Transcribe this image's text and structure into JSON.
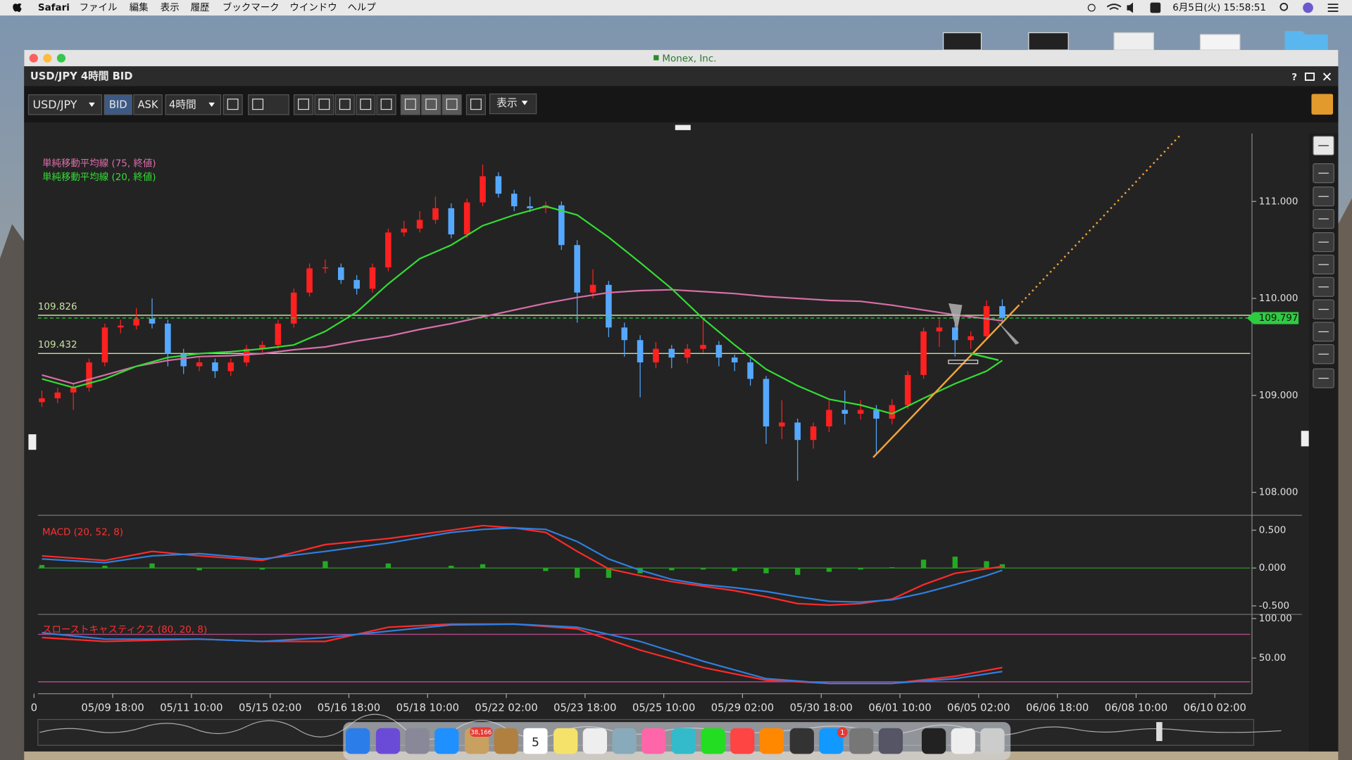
{
  "menubar": {
    "app": "Safari",
    "items": [
      "ファイル",
      "編集",
      "表示",
      "履歴",
      "ブックマーク",
      "ウインドウ",
      "ヘルプ"
    ],
    "clock": "6月5日(火) 15:58:51"
  },
  "window": {
    "title": "Monex, Inc."
  },
  "panel": {
    "title": "USD/JPY 4時間 BID",
    "help": "?"
  },
  "toolbar": {
    "symbol": "USD/JPY",
    "bid": "BID",
    "ask": "ASK",
    "interval": "4時間",
    "display": "表示"
  },
  "dock": {
    "mail_badge": "38,166",
    "calendar_day": "5",
    "appstore_badge": "1"
  },
  "chart_data": [
    {
      "type": "candlestick",
      "up_color": "#ff2020",
      "down_color": "#55a8ff",
      "grid": false,
      "xlim": [
        -0.5,
        153.5
      ],
      "ylim": [
        107.79,
        111.7
      ],
      "yticks": [
        {
          "value": 108,
          "label": "108.000"
        },
        {
          "value": 109,
          "label": "109.000"
        },
        {
          "value": 110,
          "label": "110.000"
        },
        {
          "value": 111,
          "label": "111.000"
        }
      ],
      "x": [
        0,
        2,
        4,
        6,
        8,
        10,
        12,
        14,
        16,
        18,
        20,
        22,
        24,
        26,
        28,
        30,
        32,
        34,
        36,
        38,
        40,
        42,
        44,
        46,
        48,
        50,
        52,
        54,
        56,
        58,
        60,
        62,
        64,
        66,
        68,
        70,
        72,
        74,
        76,
        78,
        80,
        82,
        84,
        86,
        88,
        90,
        92,
        94,
        96,
        98,
        100,
        102,
        104,
        106,
        108,
        110,
        112,
        114,
        116,
        118,
        120,
        122
      ],
      "ohlc": [
        [
          108.93,
          109.05,
          108.88,
          108.97
        ],
        [
          108.97,
          109.08,
          108.92,
          109.03
        ],
        [
          109.03,
          109.12,
          108.85,
          109.08
        ],
        [
          109.08,
          109.38,
          109.04,
          109.34
        ],
        [
          109.34,
          109.74,
          109.3,
          109.7
        ],
        [
          109.7,
          109.78,
          109.64,
          109.72
        ],
        [
          109.72,
          109.9,
          109.68,
          109.79
        ],
        [
          109.79,
          110.0,
          109.69,
          109.74
        ],
        [
          109.74,
          109.78,
          109.3,
          109.43
        ],
        [
          109.43,
          109.48,
          109.22,
          109.3
        ],
        [
          109.3,
          109.4,
          109.25,
          109.34
        ],
        [
          109.34,
          109.38,
          109.18,
          109.25
        ],
        [
          109.25,
          109.38,
          109.2,
          109.34
        ],
        [
          109.34,
          109.52,
          109.3,
          109.48
        ],
        [
          109.48,
          109.56,
          109.44,
          109.52
        ],
        [
          109.52,
          109.78,
          109.48,
          109.74
        ],
        [
          109.74,
          110.1,
          109.7,
          110.06
        ],
        [
          110.06,
          110.36,
          110.02,
          110.31
        ],
        [
          110.31,
          110.4,
          110.26,
          110.32
        ],
        [
          110.32,
          110.36,
          110.15,
          110.19
        ],
        [
          110.19,
          110.24,
          110.04,
          110.1
        ],
        [
          110.1,
          110.36,
          110.06,
          110.32
        ],
        [
          110.32,
          110.72,
          110.28,
          110.68
        ],
        [
          110.68,
          110.8,
          110.64,
          110.72
        ],
        [
          110.72,
          110.9,
          110.68,
          110.81
        ],
        [
          110.81,
          111.05,
          110.77,
          110.93
        ],
        [
          110.93,
          110.98,
          110.62,
          110.66
        ],
        [
          110.66,
          111.03,
          110.62,
          110.99
        ],
        [
          110.99,
          111.38,
          110.95,
          111.26
        ],
        [
          111.26,
          111.3,
          111.04,
          111.08
        ],
        [
          111.08,
          111.12,
          110.9,
          110.95
        ],
        [
          110.95,
          111.05,
          110.89,
          110.93
        ],
        [
          110.93,
          111.0,
          110.88,
          110.96
        ],
        [
          110.96,
          111.0,
          110.5,
          110.55
        ],
        [
          110.55,
          110.6,
          109.75,
          110.06
        ],
        [
          110.06,
          110.3,
          110.0,
          110.14
        ],
        [
          110.14,
          110.18,
          109.6,
          109.7
        ],
        [
          109.7,
          109.75,
          109.4,
          109.57
        ],
        [
          109.57,
          109.62,
          108.98,
          109.34
        ],
        [
          109.34,
          109.55,
          109.28,
          109.48
        ],
        [
          109.48,
          109.52,
          109.28,
          109.39
        ],
        [
          109.39,
          109.53,
          109.33,
          109.48
        ],
        [
          109.48,
          109.8,
          109.44,
          109.52
        ],
        [
          109.52,
          109.56,
          109.3,
          109.39
        ],
        [
          109.39,
          109.42,
          109.25,
          109.34
        ],
        [
          109.34,
          109.38,
          109.1,
          109.17
        ],
        [
          109.17,
          109.2,
          108.5,
          108.68
        ],
        [
          108.68,
          108.95,
          108.55,
          108.72
        ],
        [
          108.72,
          108.76,
          108.12,
          108.54
        ],
        [
          108.54,
          108.72,
          108.45,
          108.68
        ],
        [
          108.68,
          108.95,
          108.62,
          108.85
        ],
        [
          108.85,
          109.05,
          108.7,
          108.81
        ],
        [
          108.81,
          108.95,
          108.75,
          108.85
        ],
        [
          108.85,
          108.9,
          108.4,
          108.76
        ],
        [
          108.76,
          108.96,
          108.7,
          108.9
        ],
        [
          108.9,
          109.25,
          108.86,
          109.21
        ],
        [
          109.21,
          109.7,
          109.17,
          109.66
        ],
        [
          109.66,
          109.8,
          109.5,
          109.7
        ],
        [
          109.7,
          109.74,
          109.4,
          109.57
        ],
        [
          109.57,
          109.66,
          109.48,
          109.61
        ],
        [
          109.61,
          109.98,
          109.57,
          109.92
        ],
        [
          109.92,
          109.99,
          109.76,
          109.8
        ]
      ],
      "series": [
        {
          "name": "単純移動平均線 (75, 終値)",
          "color": "#d86fa8",
          "x": [
            0,
            4,
            8,
            12,
            16,
            20,
            24,
            28,
            32,
            36,
            40,
            44,
            48,
            52,
            56,
            60,
            64,
            68,
            72,
            76,
            80,
            84,
            88,
            92,
            96,
            100,
            104,
            108,
            112,
            116,
            120,
            122
          ],
          "values": [
            109.21,
            109.12,
            109.21,
            109.3,
            109.36,
            109.4,
            109.41,
            109.43,
            109.47,
            109.5,
            109.56,
            109.61,
            109.68,
            109.74,
            109.81,
            109.88,
            109.95,
            110.01,
            110.06,
            110.08,
            110.09,
            110.07,
            110.05,
            110.02,
            110.0,
            109.98,
            109.97,
            109.93,
            109.88,
            109.83,
            109.79,
            109.77
          ]
        },
        {
          "name": "単純移動平均線 (20, 終値)",
          "color": "#33dd33",
          "x": [
            0,
            4,
            8,
            12,
            16,
            20,
            24,
            28,
            32,
            36,
            40,
            44,
            48,
            52,
            56,
            60,
            64,
            68,
            72,
            76,
            80,
            84,
            88,
            92,
            96,
            100,
            104,
            108,
            112,
            116,
            120,
            122
          ],
          "values": [
            109.17,
            109.08,
            109.17,
            109.3,
            109.39,
            109.43,
            109.45,
            109.48,
            109.52,
            109.66,
            109.86,
            110.15,
            110.41,
            110.55,
            110.75,
            110.86,
            110.95,
            110.86,
            110.63,
            110.37,
            110.1,
            109.79,
            109.52,
            109.27,
            109.1,
            108.96,
            108.9,
            108.81,
            108.97,
            109.12,
            109.25,
            109.36
          ]
        }
      ],
      "hlines": [
        109.826,
        109.432
      ],
      "hline_color": "#c8e0a0",
      "last_price": 109.797,
      "last_price_color": "#2ecc40",
      "trendline": {
        "color": "#f2a33a",
        "x": [
          105.6,
          124,
          144.8
        ],
        "values": [
          108.36,
          109.92,
          111.7
        ]
      }
    },
    {
      "type": "line",
      "title": "MACD (20, 52, 8)",
      "title_color": "#ff3030",
      "grid": false,
      "xlim": [
        -0.5,
        153.5
      ],
      "ylim": [
        -0.59,
        0.64
      ],
      "yticks": [
        {
          "value": -0.5,
          "label": "-0.500"
        },
        {
          "value": 0,
          "label": "0.000"
        },
        {
          "value": 0.5,
          "label": "0.500"
        }
      ],
      "levels": [
        0
      ],
      "level_color": "#2a8a2a",
      "histogram": {
        "color": "#22aa22",
        "x": [
          0,
          8,
          14,
          20,
          28,
          36,
          44,
          52,
          56,
          60,
          64,
          68,
          72,
          76,
          80,
          84,
          88,
          92,
          96,
          100,
          104,
          108,
          112,
          116,
          120,
          122
        ],
        "values": [
          0.04,
          0.03,
          0.06,
          -0.03,
          -0.02,
          0.09,
          0.06,
          0.03,
          0.05,
          0,
          -0.04,
          -0.13,
          -0.13,
          -0.07,
          -0.03,
          -0.02,
          -0.04,
          -0.07,
          -0.09,
          -0.05,
          -0.02,
          0.01,
          0.11,
          0.15,
          0.09,
          0.05
        ]
      },
      "series": [
        {
          "color": "#ff2a2a",
          "x": [
            0,
            8,
            14,
            20,
            28,
            36,
            44,
            52,
            56,
            60,
            64,
            68,
            72,
            76,
            80,
            84,
            88,
            92,
            96,
            100,
            104,
            108,
            112,
            116,
            120,
            122
          ],
          "values": [
            0.16,
            0.1,
            0.22,
            0.16,
            0.1,
            0.31,
            0.39,
            0.5,
            0.56,
            0.53,
            0.47,
            0.22,
            -0.01,
            -0.1,
            -0.18,
            -0.24,
            -0.3,
            -0.38,
            -0.47,
            -0.49,
            -0.47,
            -0.41,
            -0.22,
            -0.07,
            -0.01,
            0.02
          ]
        },
        {
          "color": "#2f7fe0",
          "x": [
            0,
            8,
            14,
            20,
            28,
            36,
            44,
            52,
            56,
            60,
            64,
            68,
            72,
            76,
            80,
            84,
            88,
            92,
            96,
            100,
            104,
            108,
            112,
            116,
            120,
            122
          ],
          "values": [
            0.12,
            0.07,
            0.16,
            0.19,
            0.12,
            0.22,
            0.33,
            0.47,
            0.51,
            0.53,
            0.51,
            0.35,
            0.12,
            -0.03,
            -0.15,
            -0.22,
            -0.26,
            -0.31,
            -0.38,
            -0.44,
            -0.45,
            -0.42,
            -0.33,
            -0.22,
            -0.1,
            -0.03
          ]
        }
      ]
    },
    {
      "type": "line",
      "title": "スローストキャスティクス (80, 20, 8)",
      "title_color": "#ff3030",
      "grid": false,
      "xlim": [
        -0.5,
        153.5
      ],
      "ylim": [
        5,
        102
      ],
      "yticks": [
        {
          "value": 50,
          "label": "50.00"
        },
        {
          "value": 100,
          "label": "100.00"
        }
      ],
      "levels": [
        80,
        20
      ],
      "level_color": "#b04a8a",
      "series": [
        {
          "color": "#ff2a2a",
          "x": [
            0,
            8,
            20,
            28,
            36,
            44,
            52,
            60,
            68,
            76,
            84,
            92,
            100,
            108,
            116,
            122
          ],
          "values": [
            76,
            71,
            74,
            71,
            71,
            89,
            93,
            93,
            87,
            60,
            38,
            22,
            18,
            18,
            27,
            38
          ]
        },
        {
          "color": "#2f7fe0",
          "x": [
            0,
            8,
            20,
            28,
            36,
            44,
            52,
            60,
            68,
            76,
            84,
            92,
            100,
            108,
            116,
            122
          ],
          "values": [
            82,
            74,
            74,
            71,
            76,
            84,
            92,
            93,
            89,
            71,
            46,
            24,
            18,
            18,
            24,
            33
          ]
        }
      ],
      "xticks": [
        {
          "value": -1,
          "label": "0"
        },
        {
          "value": 9,
          "label": "05/09 18:00"
        },
        {
          "value": 19,
          "label": "05/11 10:00"
        },
        {
          "value": 29,
          "label": "05/15 02:00"
        },
        {
          "value": 39,
          "label": "05/16 18:00"
        },
        {
          "value": 49,
          "label": "05/18 10:00"
        },
        {
          "value": 59,
          "label": "05/22 02:00"
        },
        {
          "value": 69,
          "label": "05/23 18:00"
        },
        {
          "value": 79,
          "label": "05/25 10:00"
        },
        {
          "value": 89,
          "label": "05/29 02:00"
        },
        {
          "value": 99,
          "label": "05/30 18:00"
        },
        {
          "value": 109,
          "label": "06/01 10:00"
        },
        {
          "value": 119,
          "label": "06/05 02:00"
        },
        {
          "value": 129,
          "label": "06/06 18:00"
        },
        {
          "value": 139,
          "label": "06/08 10:00"
        },
        {
          "value": 149,
          "label": "06/10 02:00"
        }
      ]
    }
  ]
}
